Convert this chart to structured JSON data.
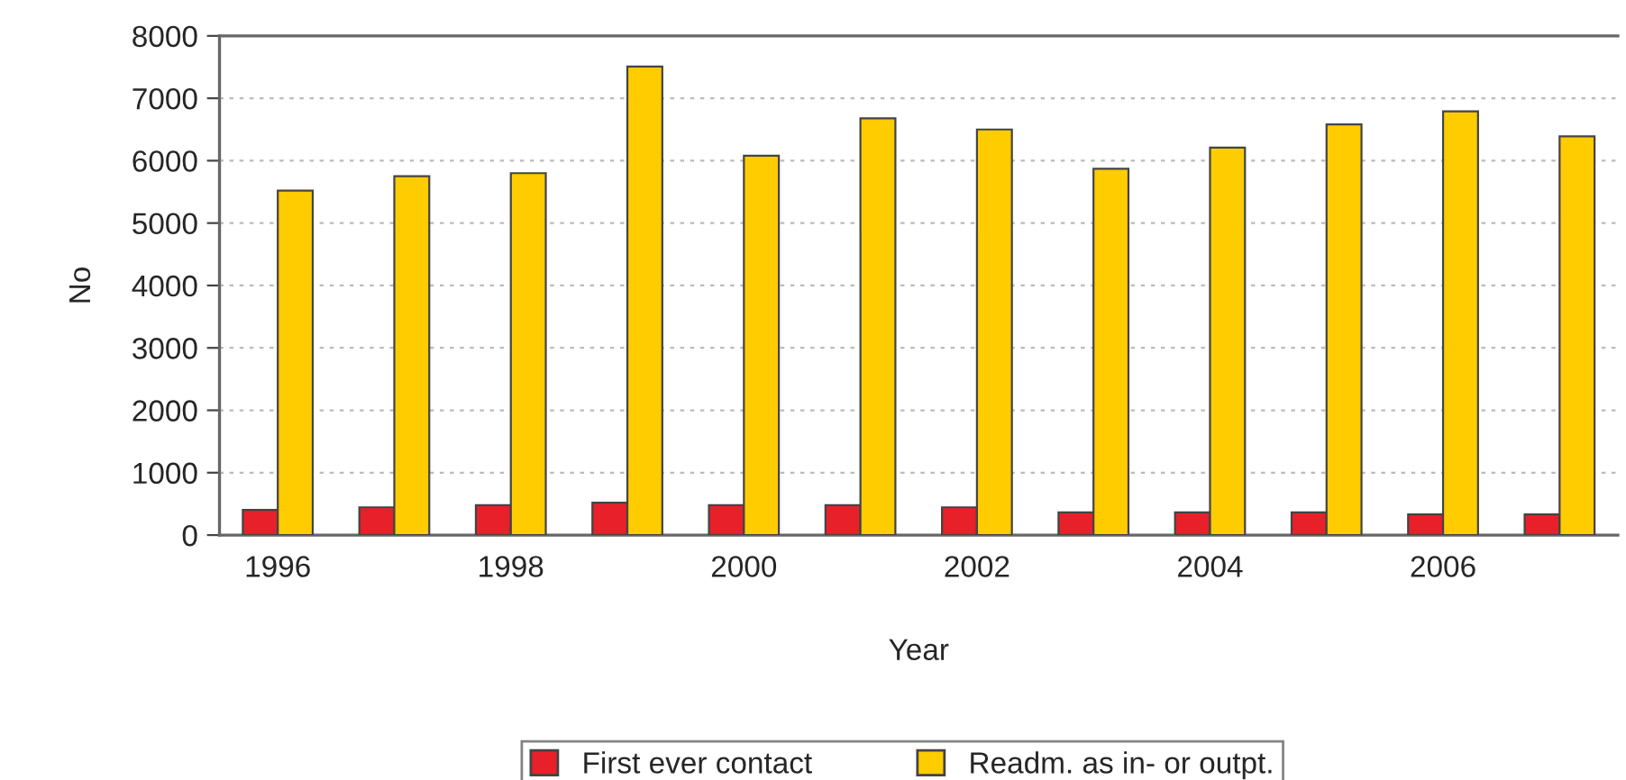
{
  "chart_data": {
    "type": "bar",
    "xlabel": "Year",
    "ylabel": "No",
    "categories": [
      "1996",
      null,
      "1998",
      null,
      "2000",
      null,
      "2002",
      null,
      "2004",
      null,
      "2006",
      null
    ],
    "series": [
      {
        "name": "First ever contact",
        "color": "#e8202a",
        "values": [
          405,
          445,
          480,
          520,
          480,
          480,
          445,
          365,
          365,
          365,
          330,
          330
        ]
      },
      {
        "name": "Readm. as in- or outpt.",
        "color": "#ffcc00",
        "values": [
          5520,
          5750,
          5800,
          7510,
          6080,
          6680,
          6500,
          5870,
          6210,
          6580,
          6790,
          6390
        ]
      }
    ],
    "ylim": [
      0,
      8000
    ],
    "yticks": [
      0,
      1000,
      2000,
      3000,
      4000,
      5000,
      6000,
      7000,
      8000
    ],
    "grid": "y",
    "legend": "bottom"
  }
}
